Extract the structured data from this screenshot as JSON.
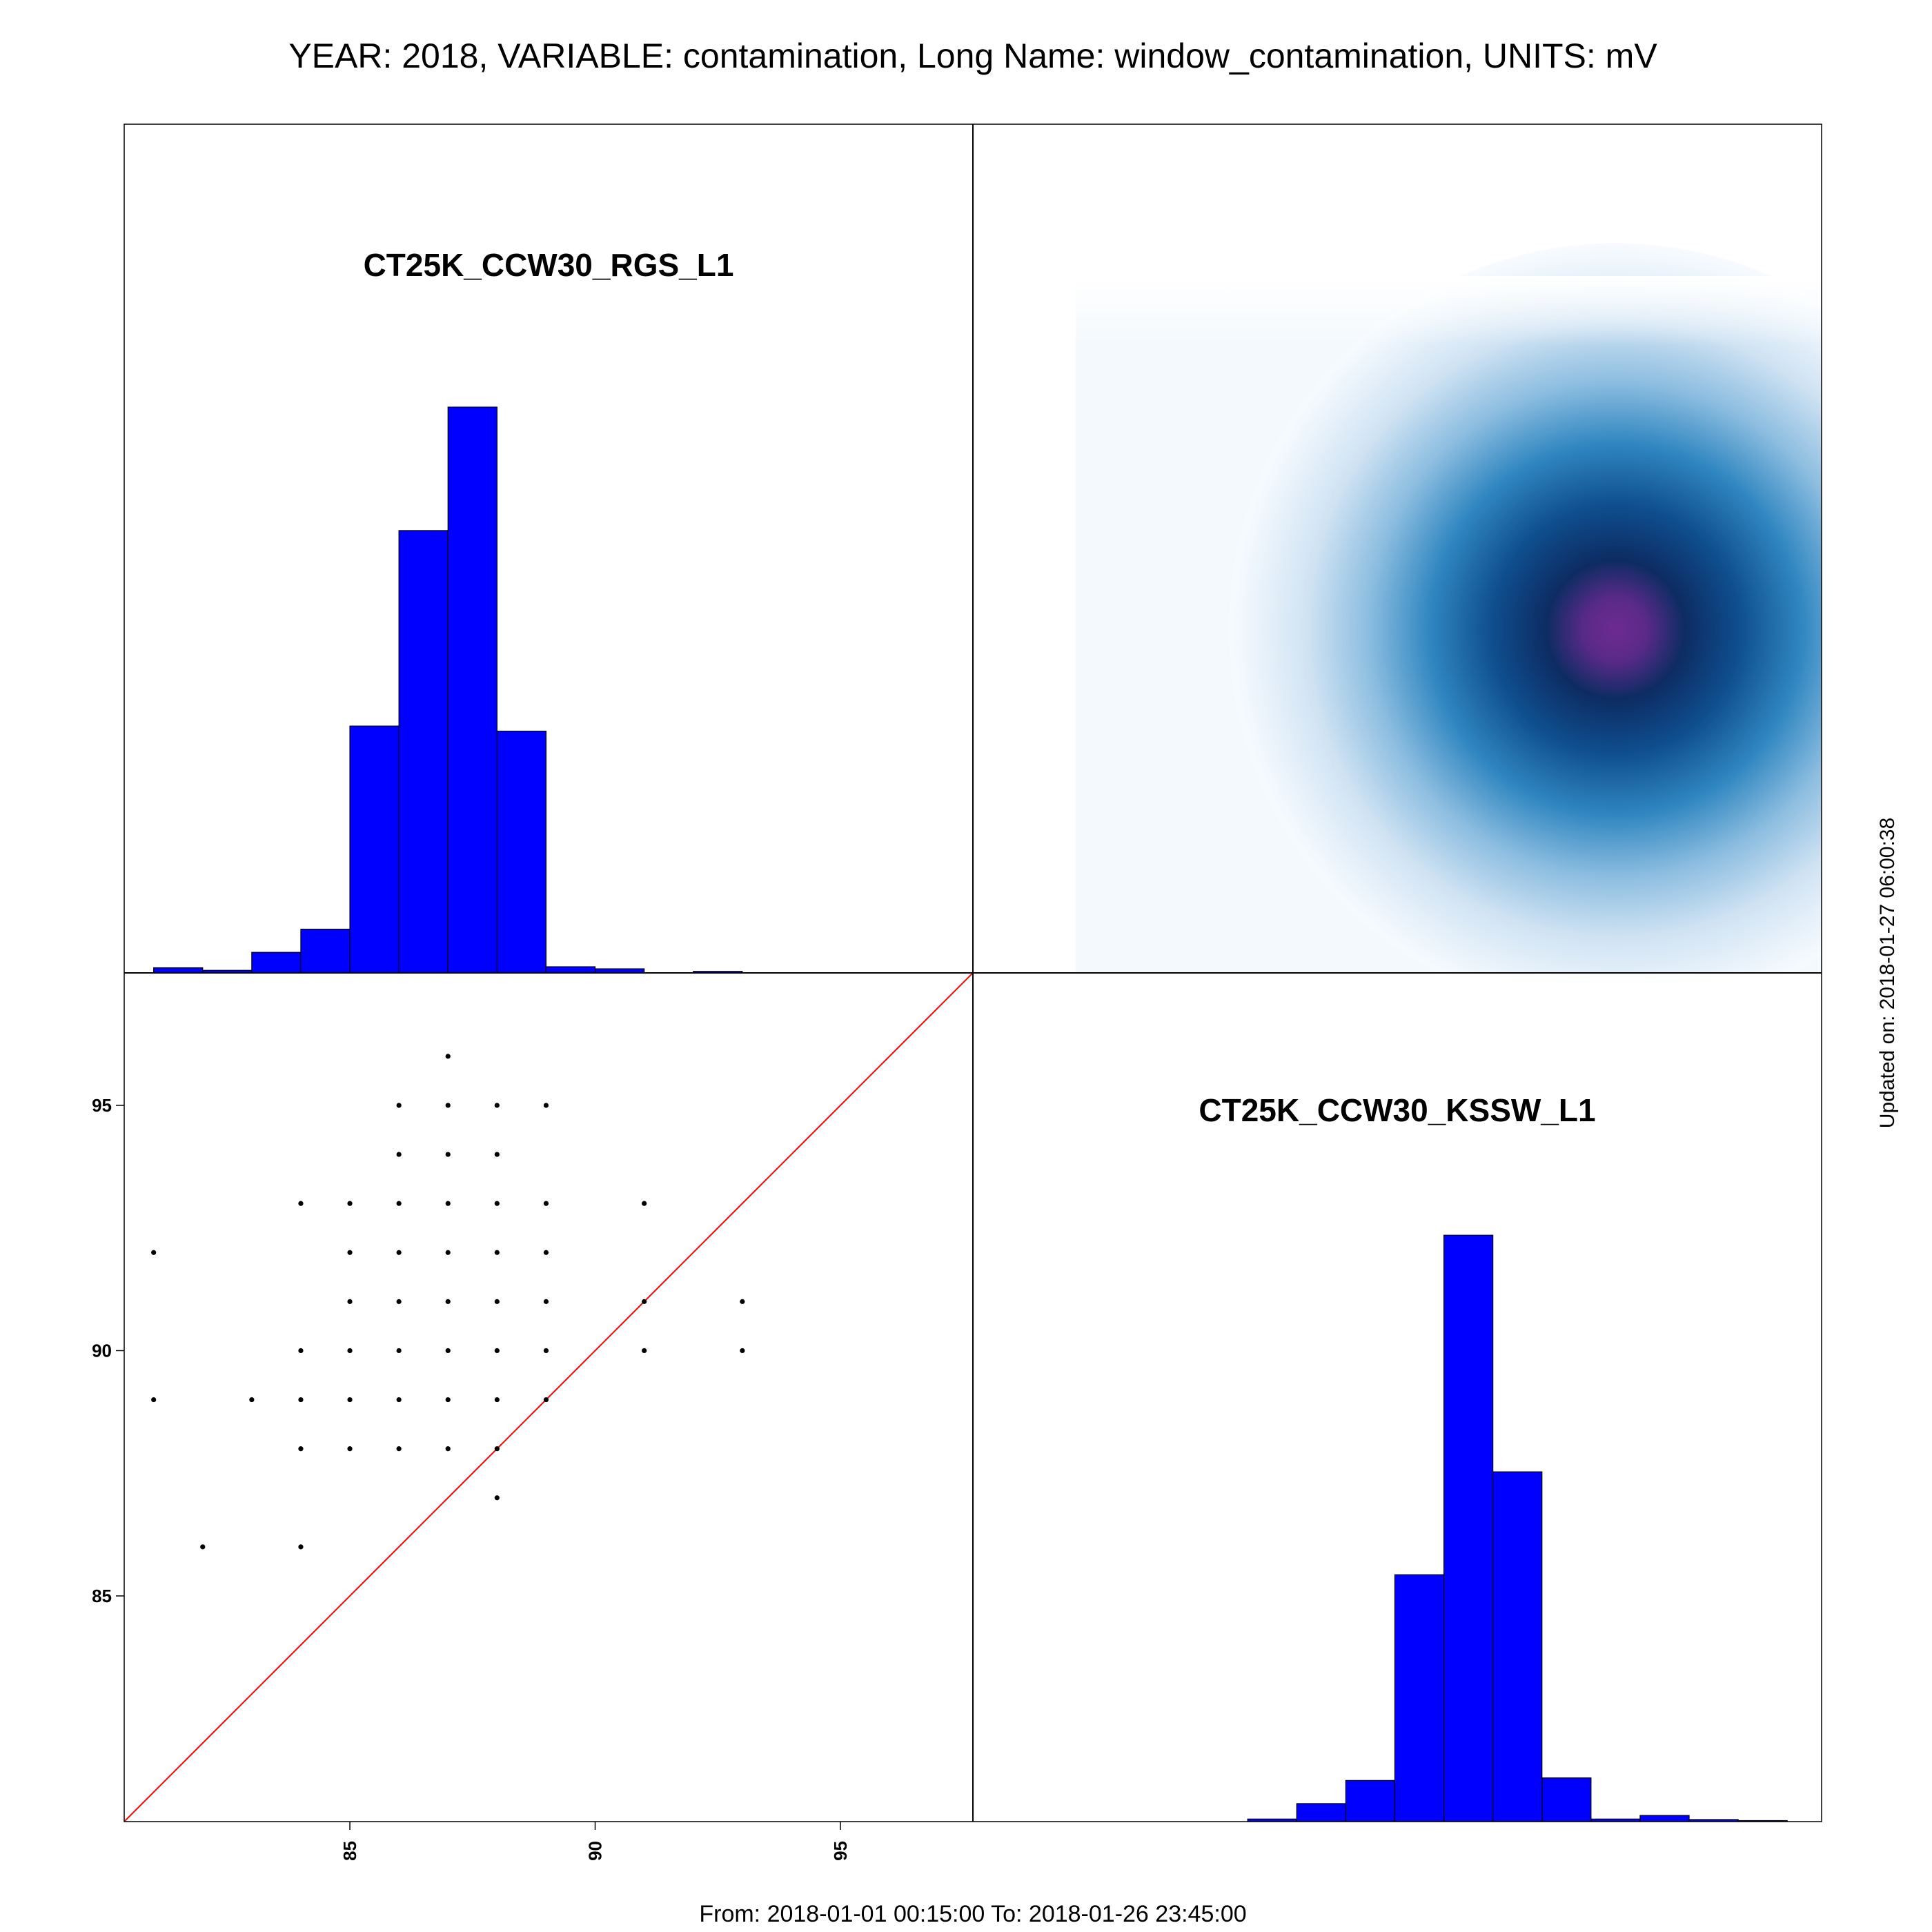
{
  "page": {
    "title": "YEAR: 2018, VARIABLE: contamination, Long Name: window_contamination, UNITS: mV",
    "footer": "From: 2018-01-01 00:15:00 To: 2018-01-26 23:45:00",
    "updated": "Updated on: 2018-01-27 06:00:38"
  },
  "colors": {
    "histogram_fill": "#0000ff",
    "identity_line": "#ff0000",
    "points": "#000000",
    "density_low": "#ffffff",
    "density_mid": "#1e7ab8",
    "density_high": "#0a2a5a",
    "density_peak": "#6a2a90"
  },
  "chart_data": [
    {
      "panel": "top-left",
      "type": "bar",
      "title": "CT25K_CCW30_RGS_L1",
      "bin_edges": [
        81,
        82,
        83,
        84,
        85,
        86,
        87,
        88,
        89,
        90,
        91,
        92,
        93
      ],
      "values": [
        1,
        0.5,
        4,
        8.5,
        48,
        86,
        110,
        47,
        1.2,
        0.8,
        0,
        0.3
      ],
      "xlim": [
        80.4,
        97.7
      ],
      "ylim": [
        0,
        165
      ]
    },
    {
      "panel": "top-right",
      "type": "heatmap",
      "description_free": true,
      "peak": {
        "x": 93.5,
        "y": 87.4
      },
      "xlim": [
        80.4,
        97.7
      ],
      "ylim": [
        80.4,
        97.7
      ]
    },
    {
      "panel": "bottom-left",
      "type": "scatter",
      "x_ticks": [
        85,
        90,
        95
      ],
      "y_ticks": [
        85,
        90,
        95
      ],
      "xlim": [
        80.4,
        97.7
      ],
      "ylim": [
        80.4,
        97.7
      ],
      "identity_line": true,
      "points": [
        [
          87,
          96
        ],
        [
          86,
          95
        ],
        [
          87,
          95
        ],
        [
          88,
          95
        ],
        [
          89,
          95
        ],
        [
          86,
          94
        ],
        [
          87,
          94
        ],
        [
          88,
          94
        ],
        [
          84,
          93
        ],
        [
          85,
          93
        ],
        [
          86,
          93
        ],
        [
          87,
          93
        ],
        [
          88,
          93
        ],
        [
          89,
          93
        ],
        [
          91,
          93
        ],
        [
          81,
          92
        ],
        [
          85,
          92
        ],
        [
          86,
          92
        ],
        [
          87,
          92
        ],
        [
          88,
          92
        ],
        [
          89,
          92
        ],
        [
          85,
          91
        ],
        [
          86,
          91
        ],
        [
          87,
          91
        ],
        [
          88,
          91
        ],
        [
          89,
          91
        ],
        [
          91,
          91
        ],
        [
          93,
          91
        ],
        [
          84,
          90
        ],
        [
          85,
          90
        ],
        [
          86,
          90
        ],
        [
          87,
          90
        ],
        [
          88,
          90
        ],
        [
          89,
          90
        ],
        [
          91,
          90
        ],
        [
          93,
          90
        ],
        [
          81,
          89
        ],
        [
          83,
          89
        ],
        [
          84,
          89
        ],
        [
          85,
          89
        ],
        [
          86,
          89
        ],
        [
          87,
          89
        ],
        [
          88,
          89
        ],
        [
          89,
          89
        ],
        [
          84,
          88
        ],
        [
          85,
          88
        ],
        [
          86,
          88
        ],
        [
          87,
          88
        ],
        [
          88,
          88
        ],
        [
          88,
          87
        ],
        [
          82,
          86
        ],
        [
          84,
          86
        ]
      ]
    },
    {
      "panel": "bottom-right",
      "type": "bar",
      "title": "CT25K_CCW30_KSSW_L1",
      "bin_edges": [
        86,
        87,
        88,
        89,
        90,
        91,
        92,
        93,
        94,
        95,
        96,
        97
      ],
      "values": [
        0.5,
        3.5,
        8,
        48,
        114,
        68,
        8.5,
        0.5,
        1.2,
        0.4,
        0.2
      ],
      "xlim": [
        80.4,
        97.7
      ],
      "ylim": [
        0,
        165
      ]
    }
  ]
}
